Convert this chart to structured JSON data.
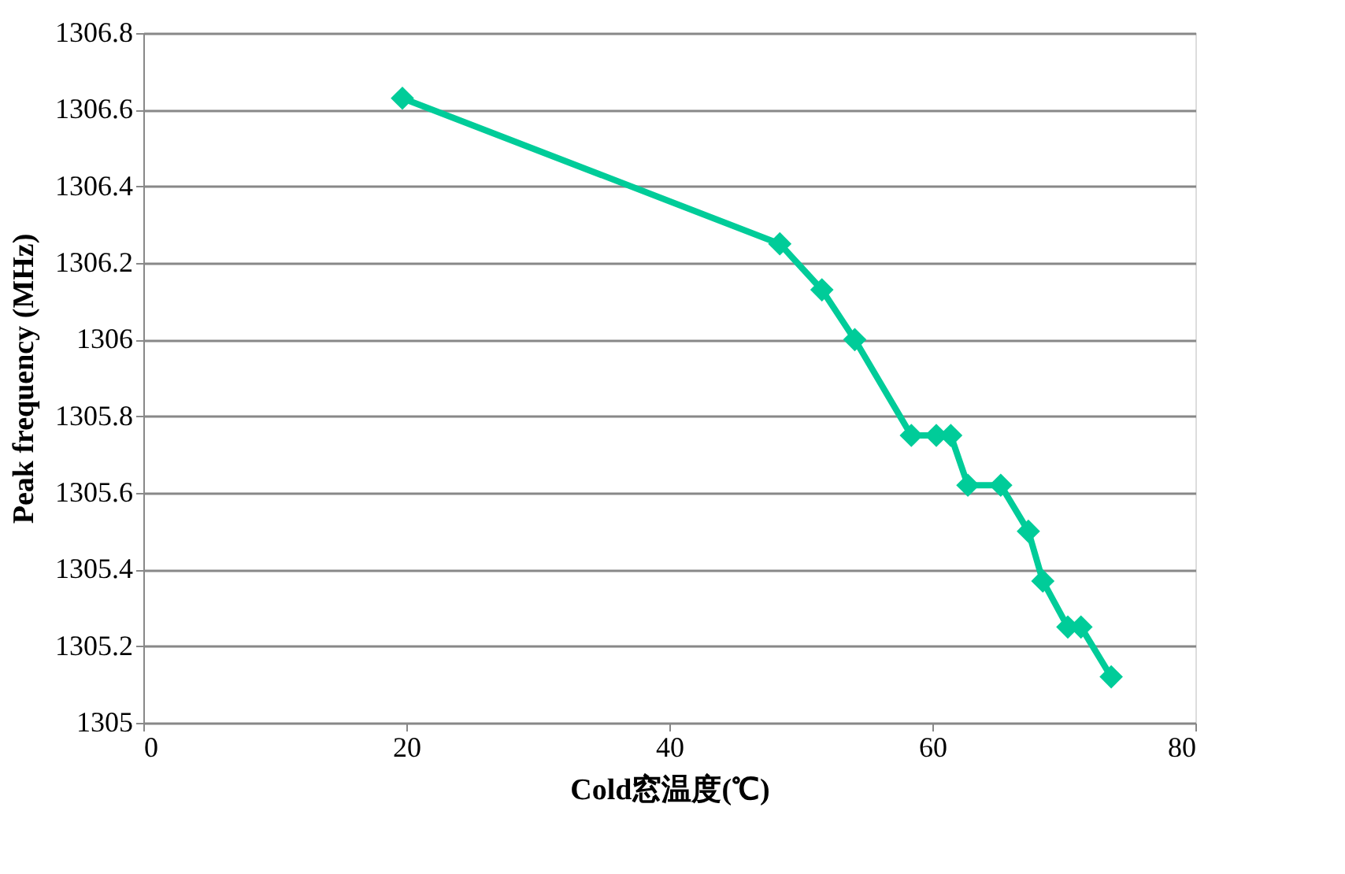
{
  "chart_data": {
    "type": "line",
    "xlabel": "Cold窓温度(℃)",
    "ylabel": "Peak frequency (MHz)",
    "x": [
      19.7,
      48.4,
      51.6,
      54.1,
      58.4,
      60.3,
      61.4,
      62.7,
      65.2,
      67.3,
      68.4,
      70.3,
      71.3,
      73.6
    ],
    "series": [
      {
        "color": "#00cc99",
        "values": [
          1306.63,
          1306.25,
          1306.13,
          1306.0,
          1305.75,
          1305.75,
          1305.75,
          1305.62,
          1305.62,
          1305.5,
          1305.37,
          1305.25,
          1305.25,
          1305.12
        ]
      }
    ],
    "xlim": [
      0,
      80
    ],
    "xticks": [
      0,
      20,
      40,
      60,
      80
    ],
    "ylim": [
      1305,
      1306.8
    ],
    "yticks": [
      1305,
      1305.2,
      1305.4,
      1305.6,
      1305.8,
      1306,
      1306.2,
      1306.4,
      1306.6,
      1306.8
    ],
    "grid": "y",
    "marker": "diamond",
    "line_style": "solid"
  }
}
